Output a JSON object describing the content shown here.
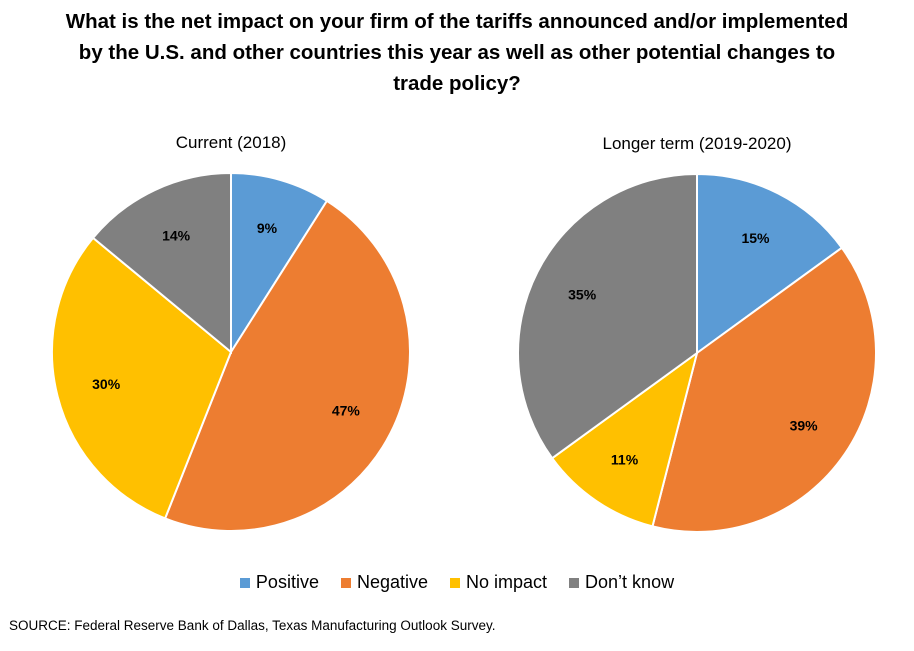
{
  "chart_data": {
    "type": "pie",
    "title": "What is the net impact on your firm of the tariffs announced and/or implemented by the U.S. and other countries this year as well as other potential changes to trade policy?",
    "categories": [
      "Positive",
      "Negative",
      "No impact",
      "Don’t know"
    ],
    "colors": [
      "#5B9BD5",
      "#ED7D31",
      "#FFC000",
      "#808080"
    ],
    "series": [
      {
        "name": "Current (2018)",
        "values": [
          9,
          47,
          30,
          14
        ],
        "labels": [
          "9%",
          "47%",
          "30%",
          "14%"
        ]
      },
      {
        "name": "Longer term (2019-2020)",
        "values": [
          15,
          39,
          11,
          35
        ],
        "labels": [
          "15%",
          "39%",
          "11%",
          "35%"
        ]
      }
    ],
    "legend_position": "bottom"
  },
  "source": "SOURCE: Federal Reserve Bank of Dallas, Texas Manufacturing Outlook Survey."
}
